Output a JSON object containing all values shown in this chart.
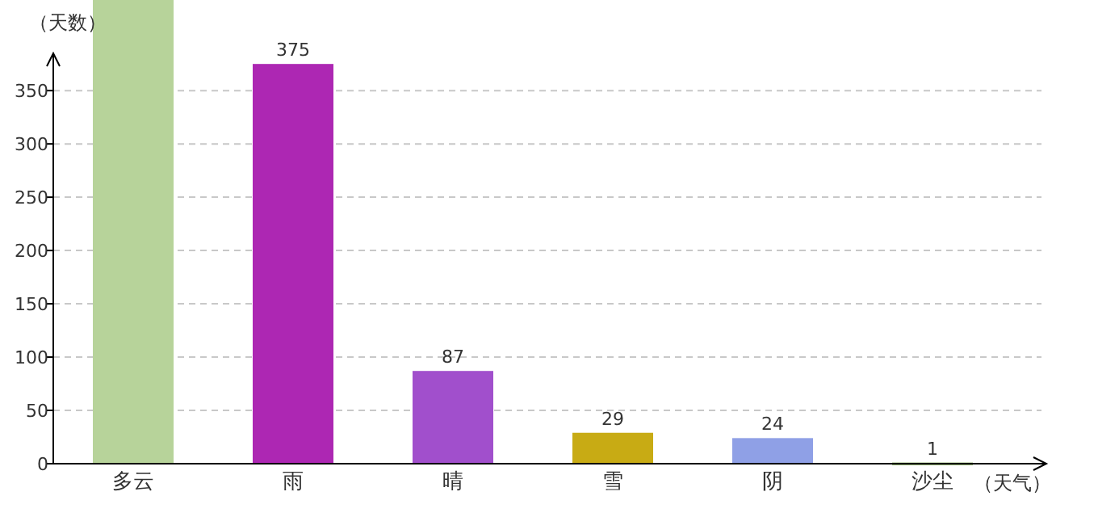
{
  "chart_data": {
    "type": "bar",
    "xlabel": "（天气）",
    "ylabel": "（天数）",
    "categories": [
      "多云",
      "雨",
      "晴",
      "雪",
      "阴",
      "沙尘"
    ],
    "values": [
      435,
      375,
      87,
      29,
      24,
      1
    ],
    "colors": [
      "#b7d39a",
      "#ad27b3",
      "#a14fcc",
      "#c8ab14",
      "#8fa0e6",
      "#6a9a3a"
    ],
    "value_labels": [
      null,
      "375",
      "87",
      "29",
      "24",
      "1"
    ],
    "ylim": [
      0,
      435
    ],
    "yticks": [
      0,
      50,
      100,
      150,
      200,
      250,
      300,
      350
    ],
    "grid": "y"
  }
}
